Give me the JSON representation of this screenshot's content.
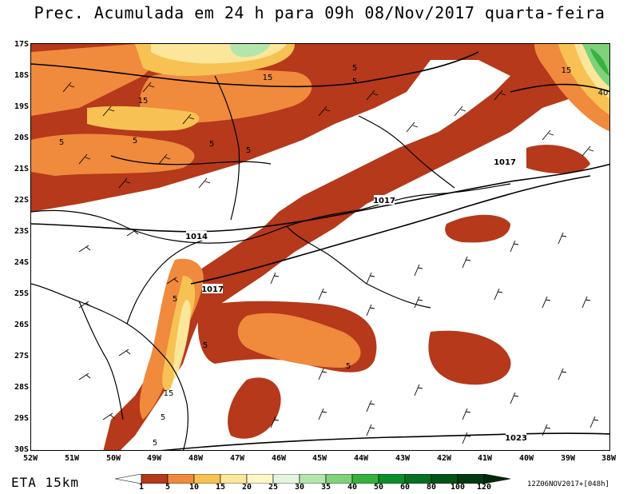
{
  "title": "Prec. Acumulada em 24 h para 09h 08/Nov/2017 quarta-feira",
  "lat_labels": [
    "17S",
    "18S",
    "19S",
    "20S",
    "21S",
    "22S",
    "23S",
    "24S",
    "25S",
    "26S",
    "27S",
    "28S",
    "29S",
    "30S"
  ],
  "lon_labels": [
    "52W",
    "51W",
    "50W",
    "49W",
    "48W",
    "47W",
    "46W",
    "45W",
    "44W",
    "43W",
    "42W",
    "41W",
    "40W",
    "39W",
    "38W"
  ],
  "model": "ETA 15km",
  "run_info": "12Z06NOV2017+[048h]",
  "colorbar": {
    "labels": [
      "1",
      "5",
      "10",
      "15",
      "20",
      "25",
      "30",
      "35",
      "40",
      "50",
      "60",
      "80",
      "100",
      "120"
    ],
    "colors": [
      "#ffffff",
      "#b5391a",
      "#f08a3c",
      "#f7c253",
      "#fce69a",
      "#fdf6c8",
      "#e3f6dd",
      "#b4e5ad",
      "#7fd27a",
      "#37b13f",
      "#0b8f2a",
      "#057024",
      "#035418",
      "#013a10",
      "#002a0a"
    ]
  },
  "isobar_labels": [
    {
      "text": "1014"
    },
    {
      "text": "1017"
    },
    {
      "text": "1017"
    },
    {
      "text": "1017"
    },
    {
      "text": "1023"
    }
  ],
  "precip_labels": [
    {
      "text": "5"
    },
    {
      "text": "5"
    },
    {
      "text": "5"
    },
    {
      "text": "5"
    },
    {
      "text": "15"
    },
    {
      "text": "15"
    },
    {
      "text": "5"
    },
    {
      "text": "15"
    },
    {
      "text": "40"
    },
    {
      "text": "5"
    },
    {
      "text": "5"
    },
    {
      "text": "5"
    },
    {
      "text": "15"
    },
    {
      "text": "5"
    },
    {
      "text": "5"
    },
    {
      "text": "5"
    }
  ],
  "colors": {
    "precip_dark": "#b5391a",
    "precip_orange": "#f08a3c",
    "precip_yellow": "#f7c253",
    "precip_light": "#fce69a",
    "precip_green": "#7fd27a",
    "precip_dgreen": "#37b13f"
  }
}
